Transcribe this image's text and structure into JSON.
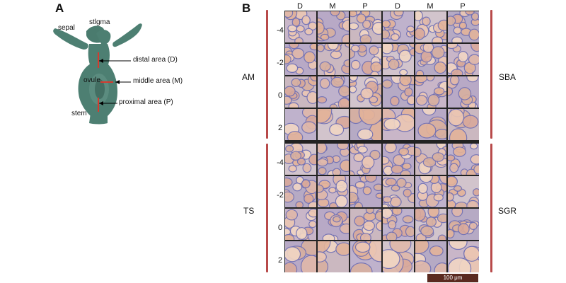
{
  "panel_a": {
    "letter": "A",
    "labels": {
      "sepal": "sepal",
      "stigma": "stlgma",
      "distal": "distal area (D)",
      "ovule": "ovule",
      "middle": "middle area (M)",
      "proximal": "proximal area (P)",
      "stem": "stem"
    },
    "tissue_color": "#4d7f72",
    "marker_color": "#d63a2e"
  },
  "panel_b": {
    "letter": "B",
    "columns": [
      "D",
      "M",
      "P",
      "D",
      "M",
      "P"
    ],
    "rows": [
      "-4",
      "-2",
      "0",
      "2",
      "-4",
      "-2",
      "0",
      "2"
    ],
    "groups_left": [
      "AM",
      "TS"
    ],
    "groups_right": [
      "SBA",
      "SGR"
    ],
    "scale_bar": "100 μm",
    "bar_color": "#b84a4a"
  }
}
